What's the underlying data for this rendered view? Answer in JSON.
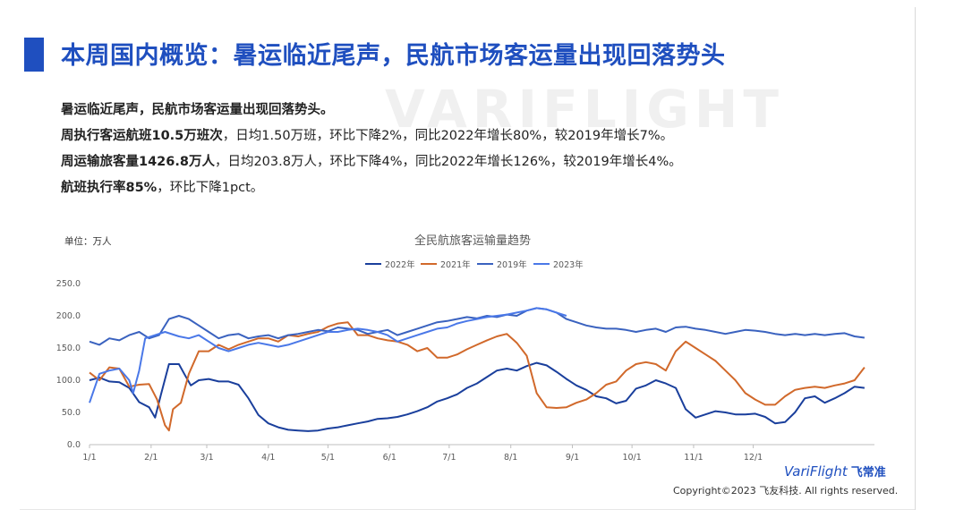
{
  "page": {
    "title": "本周国内概览：暑运临近尾声，民航市场客运量出现回落势头",
    "watermark": "VARIFLIGHT",
    "summary": {
      "line1": "暑运临近尾声，民航市场客运量出现回落势头。",
      "line2_bold": "周执行客运航班10.5万班次",
      "line2_rest": "，日均1.50万班，环比下降2%，同比2022年增长80%，较2019年增长7%。",
      "line3_bold": "周运输旅客量1426.8万人",
      "line3_rest": "，日均203.8万人，环比下降4%，同比2022年增长126%，较2019年增长4%。",
      "line4_bold": "航班执行率85%",
      "line4_rest": "，环比下降1pct。"
    },
    "unit_label": "单位：万人",
    "logo_text": "VariFlight",
    "logo_sub": "飞常准",
    "copyright": "Copyright©2023 飞友科技. All rights reserved."
  },
  "chart_data": {
    "type": "line",
    "title": "全民航旅客运输量趋势",
    "ylim": [
      0,
      250
    ],
    "yticks": [
      "0.0",
      "50.0",
      "100.0",
      "150.0",
      "200.0",
      "250.0"
    ],
    "x_ticks": [
      "1/1",
      "2/1",
      "3/1",
      "4/1",
      "5/1",
      "6/1",
      "7/1",
      "8/1",
      "9/1",
      "10/1",
      "11/1",
      "12/1"
    ],
    "grid": false,
    "legend_position": "top-center",
    "series": [
      {
        "name": "2022年",
        "color": "#1a3f9c",
        "points": [
          [
            0,
            100
          ],
          [
            5,
            104
          ],
          [
            10,
            98
          ],
          [
            15,
            97
          ],
          [
            20,
            88
          ],
          [
            25,
            66
          ],
          [
            30,
            58
          ],
          [
            33,
            42
          ],
          [
            36,
            78
          ],
          [
            40,
            125
          ],
          [
            45,
            125
          ],
          [
            48,
            108
          ],
          [
            51,
            92
          ],
          [
            55,
            100
          ],
          [
            60,
            102
          ],
          [
            65,
            98
          ],
          [
            70,
            98
          ],
          [
            75,
            93
          ],
          [
            80,
            72
          ],
          [
            85,
            46
          ],
          [
            90,
            33
          ],
          [
            95,
            27
          ],
          [
            100,
            23
          ],
          [
            105,
            22
          ],
          [
            110,
            21
          ],
          [
            115,
            22
          ],
          [
            120,
            25
          ],
          [
            125,
            27
          ],
          [
            130,
            30
          ],
          [
            135,
            33
          ],
          [
            140,
            36
          ],
          [
            145,
            40
          ],
          [
            150,
            41
          ],
          [
            155,
            43
          ],
          [
            160,
            47
          ],
          [
            165,
            52
          ],
          [
            170,
            58
          ],
          [
            175,
            67
          ],
          [
            180,
            72
          ],
          [
            185,
            78
          ],
          [
            190,
            88
          ],
          [
            195,
            95
          ],
          [
            200,
            105
          ],
          [
            205,
            115
          ],
          [
            210,
            118
          ],
          [
            215,
            115
          ],
          [
            220,
            122
          ],
          [
            225,
            127
          ],
          [
            230,
            123
          ],
          [
            235,
            113
          ],
          [
            240,
            102
          ],
          [
            245,
            92
          ],
          [
            250,
            85
          ],
          [
            255,
            75
          ],
          [
            260,
            72
          ],
          [
            265,
            64
          ],
          [
            270,
            68
          ],
          [
            275,
            87
          ],
          [
            280,
            92
          ],
          [
            285,
            100
          ],
          [
            290,
            95
          ],
          [
            295,
            88
          ],
          [
            300,
            55
          ],
          [
            305,
            42
          ],
          [
            310,
            47
          ],
          [
            315,
            52
          ],
          [
            320,
            50
          ],
          [
            325,
            47
          ],
          [
            330,
            47
          ],
          [
            335,
            48
          ],
          [
            340,
            43
          ],
          [
            345,
            33
          ],
          [
            350,
            35
          ],
          [
            355,
            50
          ],
          [
            360,
            72
          ],
          [
            365,
            75
          ],
          [
            370,
            65
          ],
          [
            375,
            72
          ],
          [
            380,
            80
          ],
          [
            385,
            90
          ],
          [
            390,
            88
          ]
        ]
      },
      {
        "name": "2021年",
        "color": "#d1692b",
        "points": [
          [
            0,
            112
          ],
          [
            5,
            100
          ],
          [
            10,
            120
          ],
          [
            15,
            118
          ],
          [
            20,
            90
          ],
          [
            25,
            93
          ],
          [
            30,
            94
          ],
          [
            34,
            70
          ],
          [
            38,
            30
          ],
          [
            40,
            22
          ],
          [
            42,
            55
          ],
          [
            46,
            65
          ],
          [
            50,
            110
          ],
          [
            55,
            145
          ],
          [
            60,
            145
          ],
          [
            65,
            155
          ],
          [
            70,
            148
          ],
          [
            75,
            155
          ],
          [
            80,
            160
          ],
          [
            85,
            165
          ],
          [
            90,
            165
          ],
          [
            95,
            160
          ],
          [
            100,
            170
          ],
          [
            105,
            168
          ],
          [
            110,
            172
          ],
          [
            115,
            175
          ],
          [
            120,
            183
          ],
          [
            125,
            188
          ],
          [
            130,
            190
          ],
          [
            135,
            170
          ],
          [
            140,
            170
          ],
          [
            145,
            165
          ],
          [
            150,
            162
          ],
          [
            155,
            160
          ],
          [
            160,
            155
          ],
          [
            165,
            145
          ],
          [
            170,
            150
          ],
          [
            175,
            135
          ],
          [
            180,
            135
          ],
          [
            185,
            140
          ],
          [
            190,
            148
          ],
          [
            195,
            155
          ],
          [
            200,
            162
          ],
          [
            205,
            168
          ],
          [
            210,
            172
          ],
          [
            215,
            158
          ],
          [
            220,
            138
          ],
          [
            225,
            80
          ],
          [
            230,
            58
          ],
          [
            235,
            57
          ],
          [
            240,
            58
          ],
          [
            245,
            65
          ],
          [
            250,
            70
          ],
          [
            255,
            80
          ],
          [
            260,
            93
          ],
          [
            265,
            98
          ],
          [
            270,
            115
          ],
          [
            275,
            125
          ],
          [
            280,
            128
          ],
          [
            285,
            125
          ],
          [
            290,
            115
          ],
          [
            295,
            145
          ],
          [
            300,
            160
          ],
          [
            305,
            150
          ],
          [
            310,
            140
          ],
          [
            315,
            130
          ],
          [
            320,
            115
          ],
          [
            325,
            100
          ],
          [
            330,
            80
          ],
          [
            335,
            70
          ],
          [
            340,
            62
          ],
          [
            345,
            62
          ],
          [
            350,
            75
          ],
          [
            355,
            85
          ],
          [
            360,
            88
          ],
          [
            365,
            90
          ],
          [
            370,
            88
          ],
          [
            375,
            92
          ],
          [
            380,
            95
          ],
          [
            385,
            100
          ],
          [
            390,
            120
          ]
        ]
      },
      {
        "name": "2019年",
        "color": "#3a62bf",
        "points": [
          [
            0,
            160
          ],
          [
            5,
            155
          ],
          [
            10,
            165
          ],
          [
            15,
            162
          ],
          [
            20,
            170
          ],
          [
            25,
            175
          ],
          [
            30,
            165
          ],
          [
            35,
            170
          ],
          [
            40,
            195
          ],
          [
            45,
            200
          ],
          [
            50,
            195
          ],
          [
            55,
            185
          ],
          [
            60,
            175
          ],
          [
            65,
            165
          ],
          [
            70,
            170
          ],
          [
            75,
            172
          ],
          [
            80,
            165
          ],
          [
            85,
            168
          ],
          [
            90,
            170
          ],
          [
            95,
            165
          ],
          [
            100,
            170
          ],
          [
            105,
            172
          ],
          [
            110,
            175
          ],
          [
            115,
            178
          ],
          [
            120,
            176
          ],
          [
            125,
            182
          ],
          [
            130,
            180
          ],
          [
            135,
            178
          ],
          [
            140,
            172
          ],
          [
            145,
            175
          ],
          [
            150,
            178
          ],
          [
            155,
            170
          ],
          [
            160,
            175
          ],
          [
            165,
            180
          ],
          [
            170,
            185
          ],
          [
            175,
            190
          ],
          [
            180,
            192
          ],
          [
            185,
            195
          ],
          [
            190,
            198
          ],
          [
            195,
            196
          ],
          [
            200,
            200
          ],
          [
            205,
            198
          ],
          [
            210,
            202
          ],
          [
            215,
            200
          ],
          [
            220,
            208
          ],
          [
            225,
            212
          ],
          [
            230,
            210
          ],
          [
            235,
            205
          ],
          [
            240,
            195
          ],
          [
            245,
            190
          ],
          [
            250,
            185
          ],
          [
            255,
            182
          ],
          [
            260,
            180
          ],
          [
            265,
            180
          ],
          [
            270,
            178
          ],
          [
            275,
            175
          ],
          [
            280,
            178
          ],
          [
            285,
            180
          ],
          [
            290,
            175
          ],
          [
            295,
            182
          ],
          [
            300,
            183
          ],
          [
            305,
            180
          ],
          [
            310,
            178
          ],
          [
            315,
            175
          ],
          [
            320,
            172
          ],
          [
            325,
            175
          ],
          [
            330,
            178
          ],
          [
            335,
            177
          ],
          [
            340,
            175
          ],
          [
            345,
            172
          ],
          [
            350,
            170
          ],
          [
            355,
            172
          ],
          [
            360,
            170
          ],
          [
            365,
            172
          ],
          [
            370,
            170
          ],
          [
            375,
            172
          ],
          [
            380,
            173
          ],
          [
            385,
            168
          ],
          [
            390,
            166
          ]
        ]
      },
      {
        "name": "2023年",
        "color": "#4a78e8",
        "points": [
          [
            0,
            65
          ],
          [
            5,
            110
          ],
          [
            10,
            115
          ],
          [
            15,
            118
          ],
          [
            20,
            100
          ],
          [
            22,
            80
          ],
          [
            25,
            115
          ],
          [
            28,
            165
          ],
          [
            33,
            170
          ],
          [
            38,
            175
          ],
          [
            45,
            168
          ],
          [
            50,
            165
          ],
          [
            55,
            170
          ],
          [
            60,
            160
          ],
          [
            65,
            150
          ],
          [
            70,
            145
          ],
          [
            75,
            150
          ],
          [
            80,
            155
          ],
          [
            85,
            158
          ],
          [
            90,
            155
          ],
          [
            95,
            152
          ],
          [
            100,
            155
          ],
          [
            105,
            160
          ],
          [
            110,
            165
          ],
          [
            115,
            170
          ],
          [
            120,
            175
          ],
          [
            125,
            175
          ],
          [
            130,
            178
          ],
          [
            135,
            180
          ],
          [
            140,
            178
          ],
          [
            145,
            175
          ],
          [
            150,
            170
          ],
          [
            155,
            160
          ],
          [
            160,
            165
          ],
          [
            165,
            170
          ],
          [
            170,
            175
          ],
          [
            175,
            180
          ],
          [
            180,
            182
          ],
          [
            185,
            188
          ],
          [
            190,
            192
          ],
          [
            195,
            195
          ],
          [
            200,
            198
          ],
          [
            205,
            200
          ],
          [
            210,
            202
          ],
          [
            215,
            205
          ],
          [
            220,
            208
          ],
          [
            225,
            212
          ],
          [
            230,
            210
          ],
          [
            235,
            205
          ],
          [
            240,
            200
          ]
        ]
      }
    ]
  }
}
